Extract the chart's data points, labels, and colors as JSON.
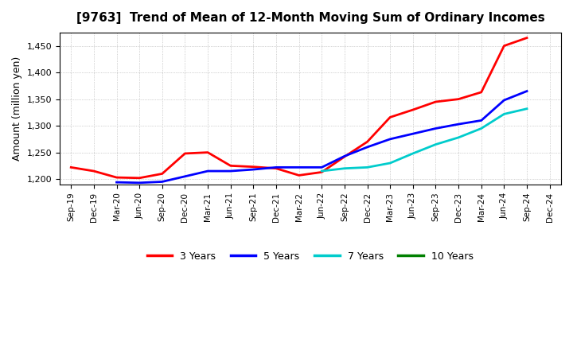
{
  "title": "[9763]  Trend of Mean of 12-Month Moving Sum of Ordinary Incomes",
  "ylabel": "Amount (million yen)",
  "background_color": "#ffffff",
  "grid_color": "#aaaaaa",
  "ylim": [
    1190,
    1475
  ],
  "yticks": [
    1200,
    1250,
    1300,
    1350,
    1400,
    1450
  ],
  "series": {
    "3 Years": {
      "color": "#ff0000",
      "data": {
        "Sep-19": 1222,
        "Dec-19": 1215,
        "Mar-20": 1203,
        "Jun-20": 1202,
        "Sep-20": 1210,
        "Dec-20": 1248,
        "Mar-21": 1250,
        "Jun-21": 1225,
        "Sep-21": 1223,
        "Dec-21": 1220,
        "Mar-22": 1207,
        "Jun-22": 1213,
        "Sep-22": 1242,
        "Dec-22": 1270,
        "Mar-23": 1316,
        "Jun-23": 1330,
        "Sep-23": 1345,
        "Dec-23": 1350,
        "Mar-24": 1363,
        "Jun-24": 1450,
        "Sep-24": 1465
      }
    },
    "5 Years": {
      "color": "#0000ff",
      "data": {
        "Mar-20": 1194,
        "Jun-20": 1193,
        "Sep-20": 1195,
        "Dec-20": 1205,
        "Mar-21": 1215,
        "Jun-21": 1215,
        "Sep-21": 1218,
        "Dec-21": 1222,
        "Mar-22": 1222,
        "Jun-22": 1222,
        "Sep-22": 1243,
        "Dec-22": 1260,
        "Mar-23": 1275,
        "Jun-23": 1285,
        "Sep-23": 1295,
        "Dec-23": 1303,
        "Mar-24": 1310,
        "Jun-24": 1348,
        "Sep-24": 1365
      }
    },
    "7 Years": {
      "color": "#00cccc",
      "data": {
        "Jun-22": 1215,
        "Sep-22": 1220,
        "Dec-22": 1222,
        "Mar-23": 1230,
        "Jun-23": 1248,
        "Sep-23": 1265,
        "Dec-23": 1278,
        "Mar-24": 1295,
        "Jun-24": 1322,
        "Sep-24": 1332
      }
    },
    "10 Years": {
      "color": "#008000",
      "data": {}
    }
  },
  "legend_entries": [
    "3 Years",
    "5 Years",
    "7 Years",
    "10 Years"
  ],
  "legend_colors": [
    "#ff0000",
    "#0000ff",
    "#00cccc",
    "#008000"
  ],
  "x_labels": [
    "Sep-19",
    "Dec-19",
    "Mar-20",
    "Jun-20",
    "Sep-20",
    "Dec-20",
    "Mar-21",
    "Jun-21",
    "Sep-21",
    "Dec-21",
    "Mar-22",
    "Jun-22",
    "Sep-22",
    "Dec-22",
    "Mar-23",
    "Jun-23",
    "Sep-23",
    "Dec-23",
    "Mar-24",
    "Jun-24",
    "Sep-24",
    "Dec-24"
  ]
}
